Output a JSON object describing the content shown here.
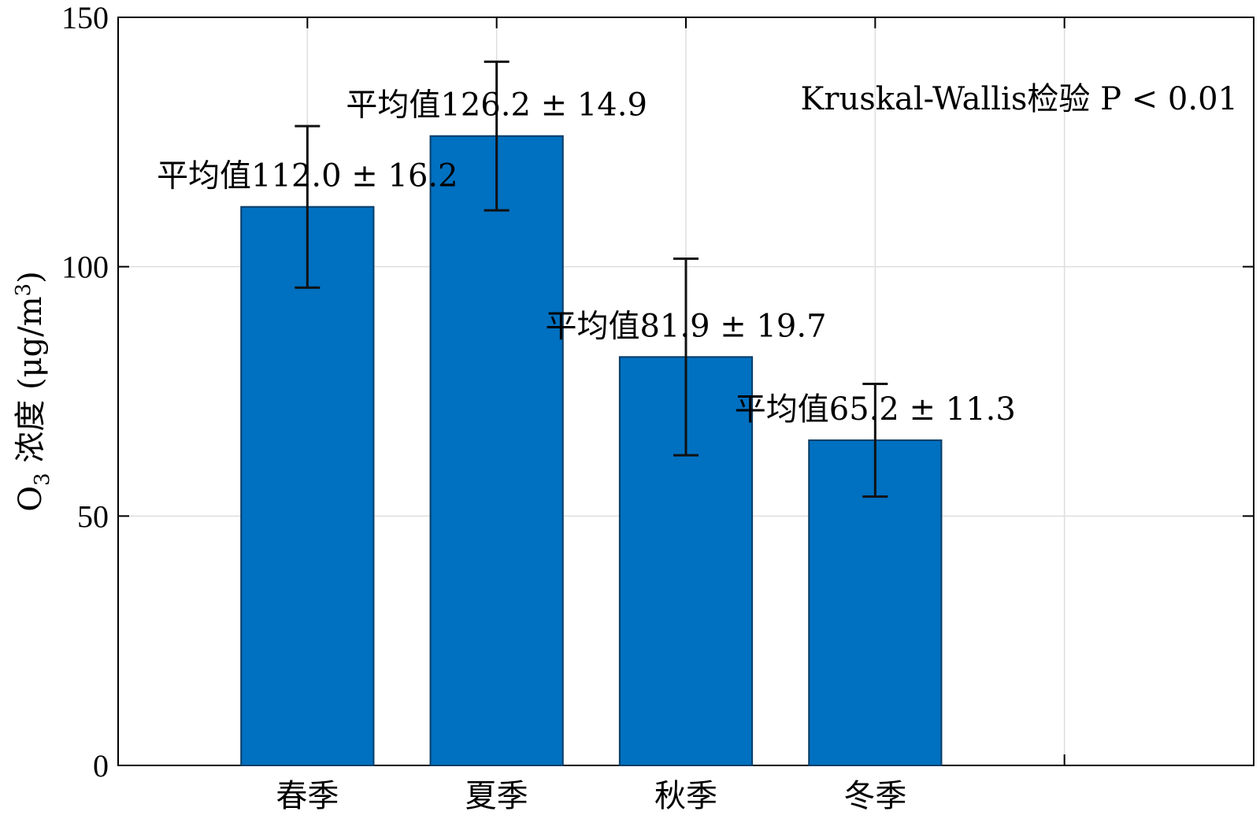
{
  "chart_data": {
    "type": "bar",
    "categories": [
      "春季",
      "夏季",
      "秋季",
      "冬季"
    ],
    "values": [
      112.0,
      126.2,
      81.9,
      65.2
    ],
    "errors": [
      16.2,
      14.9,
      19.7,
      11.3
    ],
    "data_labels": [
      "平均值112.0 ± 16.2",
      "平均值126.2 ± 14.9",
      "平均值81.9 ± 19.7",
      "平均值65.2 ± 11.3"
    ],
    "ylabel_main": "O",
    "ylabel_sub": "3",
    "ylabel_rest": " 浓度 (μg/m",
    "ylabel_sup": "3",
    "ylabel_close": ")",
    "ylim": [
      0,
      150
    ],
    "yticks": [
      0,
      50,
      100,
      150
    ],
    "grid": true,
    "annotation": "Kruskal-Wallis检验 P < 0.01",
    "bar_color": "#0070c0",
    "bar_edge_color": "#0a3d66"
  }
}
